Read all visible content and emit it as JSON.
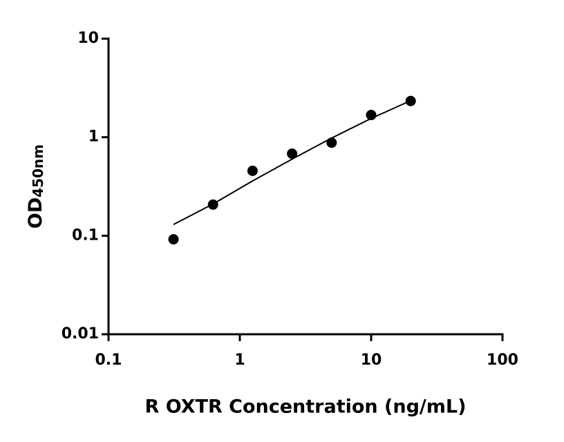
{
  "chart_data": {
    "type": "scatter",
    "xlabel": "R OXTR Concentration (ng/mL)",
    "ylabel": "OD",
    "ylabel_sub": "450nm",
    "log_x": true,
    "log_y": true,
    "xlim": [
      0.1,
      100
    ],
    "xticks": [
      0.1,
      1,
      10,
      100
    ],
    "ylim": [
      0.01,
      10
    ],
    "yticks": [
      0.01,
      0.1,
      1,
      10
    ],
    "series": [
      {
        "kind": "points",
        "color": "#000000",
        "x": [
          0.3125,
          0.625,
          1.25,
          2.5,
          5,
          10,
          20
        ],
        "values": [
          0.092,
          0.207,
          0.456,
          0.68,
          0.88,
          1.68,
          2.33
        ]
      },
      {
        "kind": "fit",
        "color": "#000000",
        "x": [
          0.3125,
          0.625,
          1.25,
          2.5,
          5,
          10,
          20
        ],
        "values": [
          0.13,
          0.21,
          0.36,
          0.6,
          0.98,
          1.55,
          2.35
        ]
      }
    ]
  }
}
